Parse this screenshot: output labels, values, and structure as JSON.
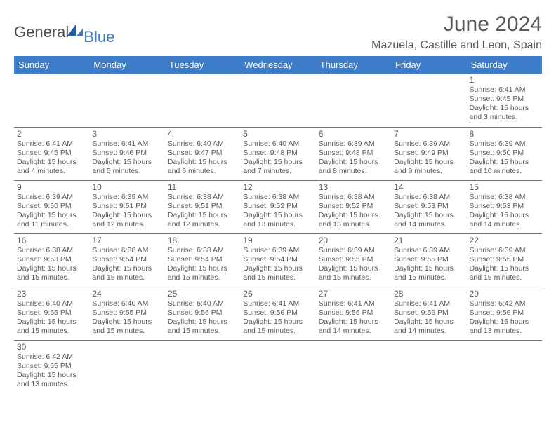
{
  "logo": {
    "general": "General",
    "blue": "Blue"
  },
  "title": "June 2024",
  "location": "Mazuela, Castille and Leon, Spain",
  "colors": {
    "header_bg": "#3d7cc9",
    "header_text": "#ffffff",
    "body_text": "#595959",
    "rule": "#3d7cc9",
    "page_bg": "#ffffff"
  },
  "day_headers": [
    "Sunday",
    "Monday",
    "Tuesday",
    "Wednesday",
    "Thursday",
    "Friday",
    "Saturday"
  ],
  "weeks": [
    [
      null,
      null,
      null,
      null,
      null,
      null,
      {
        "n": "1",
        "sr": "6:41 AM",
        "ss": "9:45 PM",
        "dl": "15 hours and 3 minutes."
      }
    ],
    [
      {
        "n": "2",
        "sr": "6:41 AM",
        "ss": "9:45 PM",
        "dl": "15 hours and 4 minutes."
      },
      {
        "n": "3",
        "sr": "6:41 AM",
        "ss": "9:46 PM",
        "dl": "15 hours and 5 minutes."
      },
      {
        "n": "4",
        "sr": "6:40 AM",
        "ss": "9:47 PM",
        "dl": "15 hours and 6 minutes."
      },
      {
        "n": "5",
        "sr": "6:40 AM",
        "ss": "9:48 PM",
        "dl": "15 hours and 7 minutes."
      },
      {
        "n": "6",
        "sr": "6:39 AM",
        "ss": "9:48 PM",
        "dl": "15 hours and 8 minutes."
      },
      {
        "n": "7",
        "sr": "6:39 AM",
        "ss": "9:49 PM",
        "dl": "15 hours and 9 minutes."
      },
      {
        "n": "8",
        "sr": "6:39 AM",
        "ss": "9:50 PM",
        "dl": "15 hours and 10 minutes."
      }
    ],
    [
      {
        "n": "9",
        "sr": "6:39 AM",
        "ss": "9:50 PM",
        "dl": "15 hours and 11 minutes."
      },
      {
        "n": "10",
        "sr": "6:39 AM",
        "ss": "9:51 PM",
        "dl": "15 hours and 12 minutes."
      },
      {
        "n": "11",
        "sr": "6:38 AM",
        "ss": "9:51 PM",
        "dl": "15 hours and 12 minutes."
      },
      {
        "n": "12",
        "sr": "6:38 AM",
        "ss": "9:52 PM",
        "dl": "15 hours and 13 minutes."
      },
      {
        "n": "13",
        "sr": "6:38 AM",
        "ss": "9:52 PM",
        "dl": "15 hours and 13 minutes."
      },
      {
        "n": "14",
        "sr": "6:38 AM",
        "ss": "9:53 PM",
        "dl": "15 hours and 14 minutes."
      },
      {
        "n": "15",
        "sr": "6:38 AM",
        "ss": "9:53 PM",
        "dl": "15 hours and 14 minutes."
      }
    ],
    [
      {
        "n": "16",
        "sr": "6:38 AM",
        "ss": "9:53 PM",
        "dl": "15 hours and 15 minutes."
      },
      {
        "n": "17",
        "sr": "6:38 AM",
        "ss": "9:54 PM",
        "dl": "15 hours and 15 minutes."
      },
      {
        "n": "18",
        "sr": "6:38 AM",
        "ss": "9:54 PM",
        "dl": "15 hours and 15 minutes."
      },
      {
        "n": "19",
        "sr": "6:39 AM",
        "ss": "9:54 PM",
        "dl": "15 hours and 15 minutes."
      },
      {
        "n": "20",
        "sr": "6:39 AM",
        "ss": "9:55 PM",
        "dl": "15 hours and 15 minutes."
      },
      {
        "n": "21",
        "sr": "6:39 AM",
        "ss": "9:55 PM",
        "dl": "15 hours and 15 minutes."
      },
      {
        "n": "22",
        "sr": "6:39 AM",
        "ss": "9:55 PM",
        "dl": "15 hours and 15 minutes."
      }
    ],
    [
      {
        "n": "23",
        "sr": "6:40 AM",
        "ss": "9:55 PM",
        "dl": "15 hours and 15 minutes."
      },
      {
        "n": "24",
        "sr": "6:40 AM",
        "ss": "9:55 PM",
        "dl": "15 hours and 15 minutes."
      },
      {
        "n": "25",
        "sr": "6:40 AM",
        "ss": "9:56 PM",
        "dl": "15 hours and 15 minutes."
      },
      {
        "n": "26",
        "sr": "6:41 AM",
        "ss": "9:56 PM",
        "dl": "15 hours and 15 minutes."
      },
      {
        "n": "27",
        "sr": "6:41 AM",
        "ss": "9:56 PM",
        "dl": "15 hours and 14 minutes."
      },
      {
        "n": "28",
        "sr": "6:41 AM",
        "ss": "9:56 PM",
        "dl": "15 hours and 14 minutes."
      },
      {
        "n": "29",
        "sr": "6:42 AM",
        "ss": "9:56 PM",
        "dl": "15 hours and 13 minutes."
      }
    ],
    [
      {
        "n": "30",
        "sr": "6:42 AM",
        "ss": "9:55 PM",
        "dl": "15 hours and 13 minutes."
      },
      null,
      null,
      null,
      null,
      null,
      null
    ]
  ],
  "labels": {
    "sunrise": "Sunrise:",
    "sunset": "Sunset:",
    "daylight": "Daylight:"
  }
}
